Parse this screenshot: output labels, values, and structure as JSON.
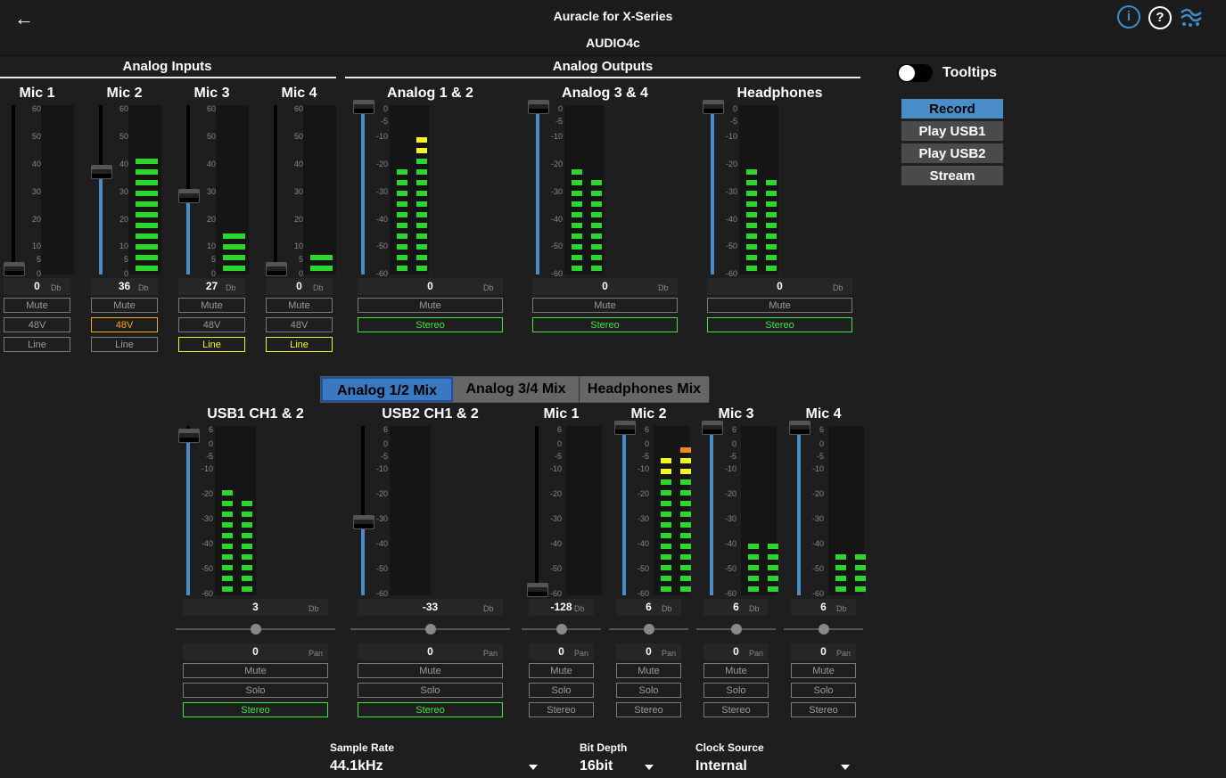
{
  "header": {
    "app_title": "Auracle for X-Series",
    "device": "AUDIO4c",
    "back_icon": "arrow-left-icon",
    "info_icon": "info-icon",
    "help_icon": "help-icon",
    "logo_icon": "splash-logo-icon"
  },
  "sections": {
    "inputs": "Analog Inputs",
    "outputs": "Analog Outputs"
  },
  "tooltips_label": "Tooltips",
  "side_menu": [
    {
      "label": "Record",
      "active": true
    },
    {
      "label": "Play USB1",
      "active": false
    },
    {
      "label": "Play USB2",
      "active": false
    },
    {
      "label": "Stream",
      "active": false
    }
  ],
  "inputs": [
    {
      "name": "Mic 1",
      "value": "0",
      "unit": "Db",
      "fader": 0,
      "meter_level": [
        0
      ],
      "scale": [
        "60",
        "50",
        "40",
        "30",
        "20",
        "10",
        "5",
        "0"
      ],
      "buttons": [
        {
          "label": "Mute",
          "state": "off"
        },
        {
          "label": "48V",
          "state": "off"
        },
        {
          "label": "Line",
          "state": "off"
        }
      ]
    },
    {
      "name": "Mic 2",
      "value": "36",
      "unit": "Db",
      "fader": 0.6,
      "meter_level": [
        11
      ],
      "scale": [
        "60",
        "50",
        "40",
        "30",
        "20",
        "10",
        "5",
        "0"
      ],
      "buttons": [
        {
          "label": "Mute",
          "state": "off"
        },
        {
          "label": "48V",
          "state": "orange"
        },
        {
          "label": "Line",
          "state": "off"
        }
      ]
    },
    {
      "name": "Mic 3",
      "value": "27",
      "unit": "Db",
      "fader": 0.45,
      "meter_level": [
        4
      ],
      "scale": [
        "60",
        "50",
        "40",
        "30",
        "20",
        "10",
        "5",
        "0"
      ],
      "buttons": [
        {
          "label": "Mute",
          "state": "off"
        },
        {
          "label": "48V",
          "state": "off"
        },
        {
          "label": "Line",
          "state": "yellow"
        }
      ]
    },
    {
      "name": "Mic 4",
      "value": "0",
      "unit": "Db",
      "fader": 0,
      "meter_level": [
        2
      ],
      "scale": [
        "60",
        "50",
        "40",
        "30",
        "20",
        "10",
        "5",
        "0"
      ],
      "buttons": [
        {
          "label": "Mute",
          "state": "off"
        },
        {
          "label": "48V",
          "state": "off"
        },
        {
          "label": "Line",
          "state": "yellow"
        }
      ]
    }
  ],
  "outputs": [
    {
      "name": "Analog 1 & 2",
      "value": "0",
      "unit": "Db",
      "fader": 1,
      "meter_level": [
        10,
        13
      ],
      "scale": [
        "0",
        "-5",
        "-10",
        "-20",
        "-30",
        "-40",
        "-50",
        "-60"
      ],
      "buttons": [
        {
          "label": "Mute",
          "state": "off"
        },
        {
          "label": "Stereo",
          "state": "green"
        }
      ]
    },
    {
      "name": "Analog 3 & 4",
      "value": "0",
      "unit": "Db",
      "fader": 1,
      "meter_level": [
        10,
        9
      ],
      "scale": [
        "0",
        "-5",
        "-10",
        "-20",
        "-30",
        "-40",
        "-50",
        "-60"
      ],
      "buttons": [
        {
          "label": "Mute",
          "state": "off"
        },
        {
          "label": "Stereo",
          "state": "green"
        }
      ]
    },
    {
      "name": "Headphones",
      "value": "0",
      "unit": "Db",
      "fader": 1,
      "meter_level": [
        10,
        9
      ],
      "scale": [
        "0",
        "-5",
        "-10",
        "-20",
        "-30",
        "-40",
        "-50",
        "-60"
      ],
      "buttons": [
        {
          "label": "Mute",
          "state": "off"
        },
        {
          "label": "Stereo",
          "state": "green"
        }
      ]
    }
  ],
  "mix_tabs": [
    {
      "label": "Analog 1/2 Mix",
      "active": true
    },
    {
      "label": "Analog 3/4 Mix",
      "active": false
    },
    {
      "label": "Headphones Mix",
      "active": false
    }
  ],
  "mix_channels": [
    {
      "name": "USB1 CH1 & 2",
      "value": "3",
      "unit": "Db",
      "fader": 0.95,
      "meter_level": [
        10,
        9
      ],
      "pan": "0",
      "pan_unit": "Pan",
      "scale": [
        "6",
        "0",
        "-5",
        "-10",
        "-20",
        "-30",
        "-40",
        "-50",
        "-60"
      ],
      "buttons": [
        {
          "label": "Mute",
          "state": "off"
        },
        {
          "label": "Solo",
          "state": "off"
        },
        {
          "label": "Stereo",
          "state": "green"
        }
      ]
    },
    {
      "name": "USB2 CH1 & 2",
      "value": "-33",
      "unit": "Db",
      "fader": 0.42,
      "meter_level": [
        0,
        0
      ],
      "pan": "0",
      "pan_unit": "Pan",
      "scale": [
        "6",
        "0",
        "-5",
        "-10",
        "-20",
        "-30",
        "-40",
        "-50",
        "-60"
      ],
      "buttons": [
        {
          "label": "Mute",
          "state": "off"
        },
        {
          "label": "Solo",
          "state": "off"
        },
        {
          "label": "Stereo",
          "state": "green"
        }
      ]
    },
    {
      "name": "Mic 1",
      "value": "-128",
      "unit": "Db",
      "fader": 0,
      "meter_level": [
        0
      ],
      "pan": "0",
      "pan_unit": "Pan",
      "scale": [
        "6",
        "0",
        "-5",
        "-10",
        "-20",
        "-30",
        "-40",
        "-50",
        "-60"
      ],
      "buttons": [
        {
          "label": "Mute",
          "state": "off"
        },
        {
          "label": "Solo",
          "state": "off"
        },
        {
          "label": "Stereo",
          "state": "off"
        }
      ]
    },
    {
      "name": "Mic 2",
      "value": "6",
      "unit": "Db",
      "fader": 1,
      "meter_level": [
        13,
        14
      ],
      "pan": "0",
      "pan_unit": "Pan",
      "scale": [
        "6",
        "0",
        "-5",
        "-10",
        "-20",
        "-30",
        "-40",
        "-50",
        "-60"
      ],
      "buttons": [
        {
          "label": "Mute",
          "state": "off"
        },
        {
          "label": "Solo",
          "state": "off"
        },
        {
          "label": "Stereo",
          "state": "off"
        }
      ]
    },
    {
      "name": "Mic 3",
      "value": "6",
      "unit": "Db",
      "fader": 1,
      "meter_level": [
        5,
        5
      ],
      "pan": "0",
      "pan_unit": "Pan",
      "scale": [
        "6",
        "0",
        "-5",
        "-10",
        "-20",
        "-30",
        "-40",
        "-50",
        "-60"
      ],
      "buttons": [
        {
          "label": "Mute",
          "state": "off"
        },
        {
          "label": "Solo",
          "state": "off"
        },
        {
          "label": "Stereo",
          "state": "off"
        }
      ]
    },
    {
      "name": "Mic 4",
      "value": "6",
      "unit": "Db",
      "fader": 1,
      "meter_level": [
        4,
        4
      ],
      "pan": "0",
      "pan_unit": "Pan",
      "scale": [
        "6",
        "0",
        "-5",
        "-10",
        "-20",
        "-30",
        "-40",
        "-50",
        "-60"
      ],
      "buttons": [
        {
          "label": "Mute",
          "state": "off"
        },
        {
          "label": "Solo",
          "state": "off"
        },
        {
          "label": "Stereo",
          "state": "off"
        }
      ]
    }
  ],
  "settings": [
    {
      "label": "Sample Rate",
      "value": "44.1kHz"
    },
    {
      "label": "Bit Depth",
      "value": "16bit"
    },
    {
      "label": "Clock Source",
      "value": "Internal"
    }
  ],
  "colors": {
    "accent": "#4a8cc7",
    "meter_green": "#2ed52e",
    "meter_yellow": "#f3f32a",
    "meter_orange": "#f08a1c"
  }
}
